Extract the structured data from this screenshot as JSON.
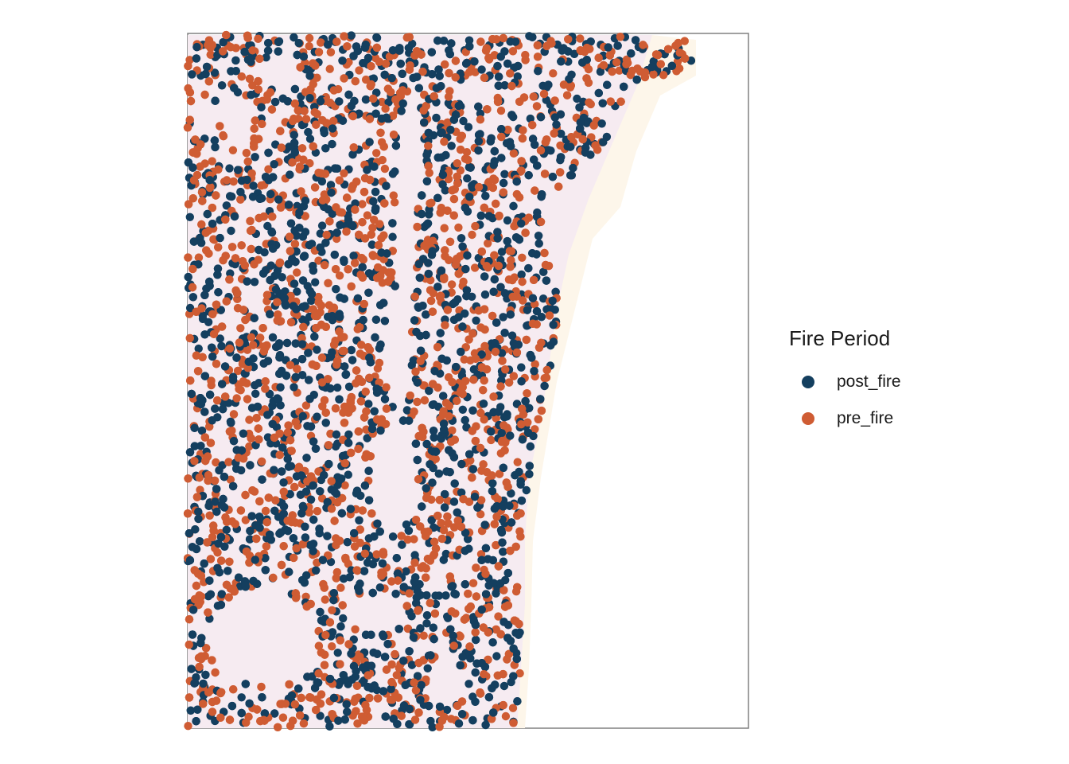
{
  "legend": {
    "title": "Fire Period",
    "items": [
      {
        "label": "post_fire",
        "color": "#143f5f"
      },
      {
        "label": "pre_fire",
        "color": "#cf5c33"
      }
    ]
  },
  "map": {
    "frame_color": "#808080",
    "background_shading": [
      "#f6ebf1",
      "#fdf6ea"
    ]
  }
}
